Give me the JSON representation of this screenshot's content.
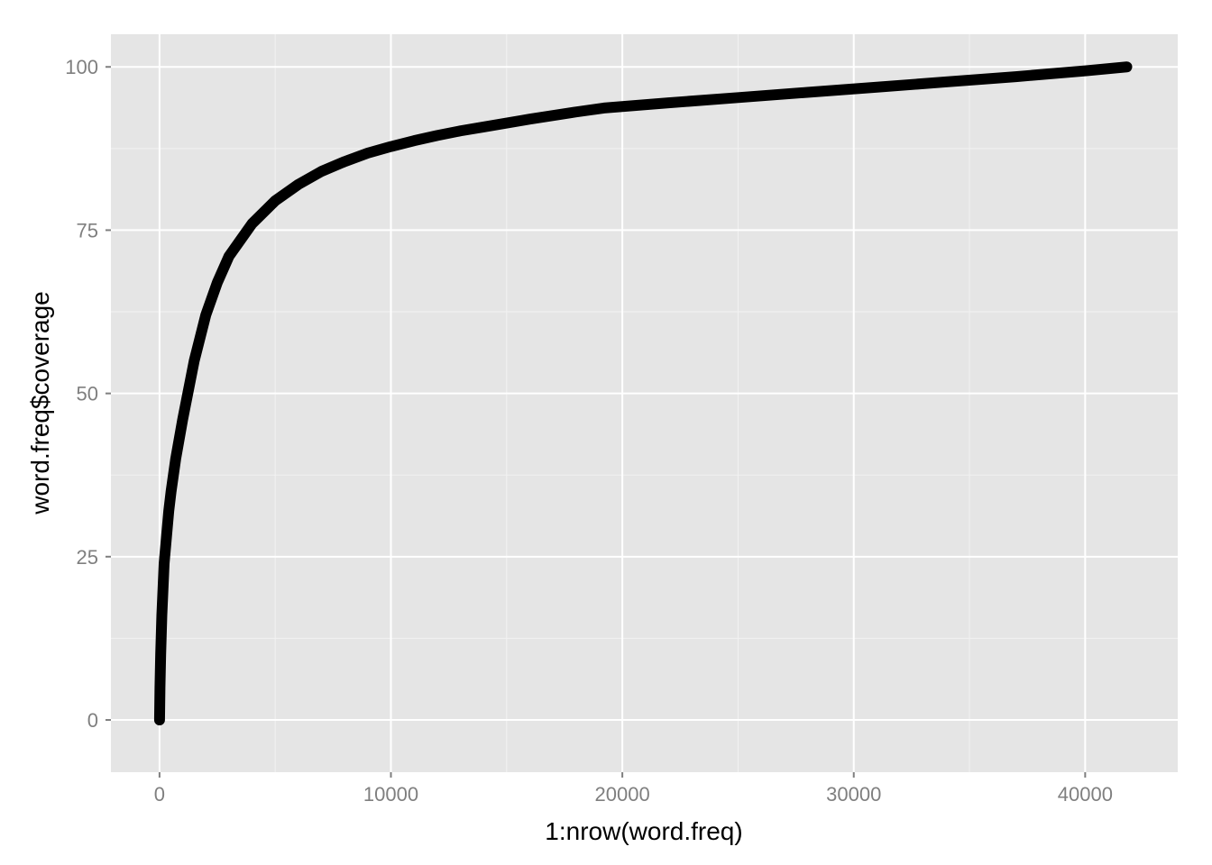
{
  "chart_data": {
    "type": "line",
    "title": "",
    "xlabel": "1:nrow(word.freq)",
    "ylabel": "word.freq$coverage",
    "xlim": [
      -2100,
      44000
    ],
    "ylim": [
      -8,
      105
    ],
    "x_ticks": [
      0,
      10000,
      20000,
      30000,
      40000
    ],
    "x_tick_labels": [
      "0",
      "10000",
      "20000",
      "30000",
      "40000"
    ],
    "x_minor_ticks": [
      5000,
      15000,
      25000,
      35000
    ],
    "y_ticks": [
      0,
      25,
      50,
      75,
      100
    ],
    "y_tick_labels": [
      "0",
      "25",
      "50",
      "75",
      "100"
    ],
    "y_minor_ticks": [
      12.5,
      37.5,
      62.5,
      87.5
    ],
    "grid": true,
    "legend": "none",
    "line_color": "#000000",
    "panel_color": "#e5e5e5",
    "series": [
      {
        "x": [
          1,
          20,
          50,
          100,
          150,
          200,
          300,
          400,
          500,
          700,
          1000,
          1500,
          2000,
          2500,
          3000,
          4000,
          5000,
          6000,
          7000,
          8000,
          9000,
          10000,
          11000,
          12000,
          13000,
          14000,
          16000,
          18000,
          19200,
          22000,
          25000,
          28000,
          31000,
          34000,
          37000,
          40000,
          41800
        ],
        "y": [
          0,
          5,
          10,
          16,
          20,
          24,
          28,
          32,
          35,
          40,
          46,
          55,
          62,
          67,
          71,
          76,
          79.5,
          82,
          84,
          85.5,
          86.8,
          87.8,
          88.7,
          89.5,
          90.2,
          90.8,
          92,
          93.1,
          93.7,
          94.5,
          95.3,
          96.1,
          96.9,
          97.7,
          98.5,
          99.4,
          100
        ]
      }
    ]
  }
}
